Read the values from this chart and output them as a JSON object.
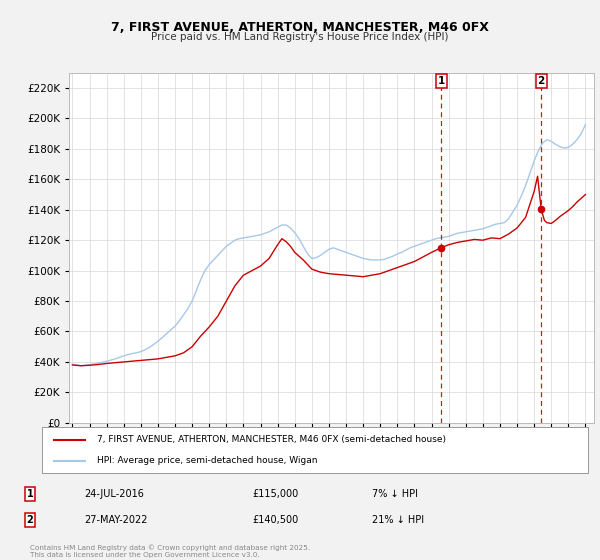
{
  "title_line1": "7, FIRST AVENUE, ATHERTON, MANCHESTER, M46 0FX",
  "title_line2": "Price paid vs. HM Land Registry's House Price Index (HPI)",
  "bg_color": "#f2f2f2",
  "plot_bg_color": "#ffffff",
  "grid_color": "#d8d8d8",
  "hpi_color": "#a8c8e8",
  "price_color": "#cc0000",
  "vline_color": "#cc0000",
  "marker1_x": 2016.56,
  "marker1_y": 115000,
  "marker2_x": 2022.41,
  "marker2_y": 140500,
  "ylim": [
    0,
    230000
  ],
  "xlim": [
    1994.8,
    2025.5
  ],
  "ytick_step": 20000,
  "legend_label_price": "7, FIRST AVENUE, ATHERTON, MANCHESTER, M46 0FX (semi-detached house)",
  "legend_label_hpi": "HPI: Average price, semi-detached house, Wigan",
  "annotation1_label": "1",
  "annotation1_date": "24-JUL-2016",
  "annotation1_price": "£115,000",
  "annotation1_hpi": "7% ↓ HPI",
  "annotation2_label": "2",
  "annotation2_date": "27-MAY-2022",
  "annotation2_price": "£140,500",
  "annotation2_hpi": "21% ↓ HPI",
  "footer": "Contains HM Land Registry data © Crown copyright and database right 2025.\nThis data is licensed under the Open Government Licence v3.0.",
  "hpi_data": [
    [
      1995.0,
      38500
    ],
    [
      1995.25,
      38000
    ],
    [
      1995.5,
      37500
    ],
    [
      1995.75,
      37800
    ],
    [
      1996.0,
      38200
    ],
    [
      1996.25,
      38700
    ],
    [
      1996.5,
      39200
    ],
    [
      1996.75,
      39800
    ],
    [
      1997.0,
      40500
    ],
    [
      1997.25,
      41200
    ],
    [
      1997.5,
      42000
    ],
    [
      1997.75,
      43000
    ],
    [
      1998.0,
      44000
    ],
    [
      1998.25,
      44800
    ],
    [
      1998.5,
      45500
    ],
    [
      1998.75,
      46000
    ],
    [
      1999.0,
      46800
    ],
    [
      1999.25,
      48000
    ],
    [
      1999.5,
      49500
    ],
    [
      1999.75,
      51500
    ],
    [
      2000.0,
      53500
    ],
    [
      2000.25,
      56000
    ],
    [
      2000.5,
      58500
    ],
    [
      2000.75,
      61000
    ],
    [
      2001.0,
      63500
    ],
    [
      2001.25,
      67000
    ],
    [
      2001.5,
      71000
    ],
    [
      2001.75,
      75000
    ],
    [
      2002.0,
      80000
    ],
    [
      2002.25,
      87000
    ],
    [
      2002.5,
      94000
    ],
    [
      2002.75,
      100000
    ],
    [
      2003.0,
      104000
    ],
    [
      2003.25,
      107000
    ],
    [
      2003.5,
      110000
    ],
    [
      2003.75,
      113000
    ],
    [
      2004.0,
      116000
    ],
    [
      2004.25,
      118000
    ],
    [
      2004.5,
      120000
    ],
    [
      2004.75,
      121000
    ],
    [
      2005.0,
      121500
    ],
    [
      2005.25,
      122000
    ],
    [
      2005.5,
      122500
    ],
    [
      2005.75,
      123000
    ],
    [
      2006.0,
      123500
    ],
    [
      2006.25,
      124500
    ],
    [
      2006.5,
      125500
    ],
    [
      2006.75,
      127000
    ],
    [
      2007.0,
      128500
    ],
    [
      2007.25,
      130000
    ],
    [
      2007.5,
      130000
    ],
    [
      2007.75,
      128000
    ],
    [
      2008.0,
      125000
    ],
    [
      2008.25,
      121000
    ],
    [
      2008.5,
      116000
    ],
    [
      2008.75,
      111000
    ],
    [
      2009.0,
      108000
    ],
    [
      2009.25,
      108500
    ],
    [
      2009.5,
      110000
    ],
    [
      2009.75,
      112000
    ],
    [
      2010.0,
      114000
    ],
    [
      2010.25,
      115000
    ],
    [
      2010.5,
      114000
    ],
    [
      2010.75,
      113000
    ],
    [
      2011.0,
      112000
    ],
    [
      2011.25,
      111000
    ],
    [
      2011.5,
      110000
    ],
    [
      2011.75,
      109000
    ],
    [
      2012.0,
      108000
    ],
    [
      2012.25,
      107500
    ],
    [
      2012.5,
      107000
    ],
    [
      2012.75,
      107000
    ],
    [
      2013.0,
      107000
    ],
    [
      2013.25,
      107500
    ],
    [
      2013.5,
      108500
    ],
    [
      2013.75,
      109500
    ],
    [
      2014.0,
      111000
    ],
    [
      2014.25,
      112000
    ],
    [
      2014.5,
      113500
    ],
    [
      2014.75,
      115000
    ],
    [
      2015.0,
      116000
    ],
    [
      2015.25,
      117000
    ],
    [
      2015.5,
      118000
    ],
    [
      2015.75,
      119000
    ],
    [
      2016.0,
      120000
    ],
    [
      2016.25,
      121000
    ],
    [
      2016.5,
      121500
    ],
    [
      2016.75,
      122000
    ],
    [
      2017.0,
      122500
    ],
    [
      2017.25,
      123500
    ],
    [
      2017.5,
      124500
    ],
    [
      2017.75,
      125000
    ],
    [
      2018.0,
      125500
    ],
    [
      2018.25,
      126000
    ],
    [
      2018.5,
      126500
    ],
    [
      2018.75,
      127000
    ],
    [
      2019.0,
      127500
    ],
    [
      2019.25,
      128500
    ],
    [
      2019.5,
      129500
    ],
    [
      2019.75,
      130500
    ],
    [
      2020.0,
      131000
    ],
    [
      2020.25,
      131500
    ],
    [
      2020.5,
      134000
    ],
    [
      2020.75,
      138500
    ],
    [
      2021.0,
      143000
    ],
    [
      2021.25,
      149000
    ],
    [
      2021.5,
      156000
    ],
    [
      2021.75,
      164000
    ],
    [
      2022.0,
      172000
    ],
    [
      2022.25,
      179000
    ],
    [
      2022.5,
      184000
    ],
    [
      2022.75,
      186000
    ],
    [
      2023.0,
      185000
    ],
    [
      2023.25,
      183000
    ],
    [
      2023.5,
      181500
    ],
    [
      2023.75,
      180500
    ],
    [
      2024.0,
      181000
    ],
    [
      2024.25,
      183000
    ],
    [
      2024.5,
      186000
    ],
    [
      2024.75,
      190000
    ],
    [
      2025.0,
      196000
    ]
  ],
  "price_data": [
    [
      1995.0,
      38000
    ],
    [
      1995.5,
      37500
    ],
    [
      1996.0,
      37800
    ],
    [
      1996.5,
      38300
    ],
    [
      1997.0,
      39000
    ],
    [
      1997.5,
      39500
    ],
    [
      1998.0,
      40000
    ],
    [
      1998.5,
      40500
    ],
    [
      1999.0,
      41000
    ],
    [
      1999.5,
      41500
    ],
    [
      2000.0,
      42000
    ],
    [
      2000.5,
      43000
    ],
    [
      2001.0,
      44000
    ],
    [
      2001.5,
      46000
    ],
    [
      2002.0,
      50000
    ],
    [
      2002.5,
      57000
    ],
    [
      2003.0,
      63000
    ],
    [
      2003.5,
      70000
    ],
    [
      2004.0,
      80000
    ],
    [
      2004.5,
      90000
    ],
    [
      2005.0,
      97000
    ],
    [
      2005.5,
      100000
    ],
    [
      2006.0,
      103000
    ],
    [
      2006.5,
      108000
    ],
    [
      2007.0,
      117000
    ],
    [
      2007.25,
      121000
    ],
    [
      2007.5,
      119000
    ],
    [
      2007.75,
      116000
    ],
    [
      2008.0,
      112000
    ],
    [
      2008.5,
      107000
    ],
    [
      2009.0,
      101000
    ],
    [
      2009.5,
      99000
    ],
    [
      2010.0,
      98000
    ],
    [
      2010.5,
      97500
    ],
    [
      2011.0,
      97000
    ],
    [
      2011.5,
      96500
    ],
    [
      2012.0,
      96000
    ],
    [
      2012.5,
      97000
    ],
    [
      2013.0,
      98000
    ],
    [
      2013.5,
      100000
    ],
    [
      2014.0,
      102000
    ],
    [
      2014.5,
      104000
    ],
    [
      2015.0,
      106000
    ],
    [
      2015.5,
      109000
    ],
    [
      2016.0,
      112000
    ],
    [
      2016.56,
      115000
    ],
    [
      2017.0,
      117000
    ],
    [
      2017.5,
      118500
    ],
    [
      2018.0,
      119500
    ],
    [
      2018.5,
      120500
    ],
    [
      2019.0,
      120000
    ],
    [
      2019.5,
      121500
    ],
    [
      2020.0,
      121000
    ],
    [
      2020.5,
      124000
    ],
    [
      2021.0,
      128000
    ],
    [
      2021.5,
      135000
    ],
    [
      2022.0,
      152000
    ],
    [
      2022.2,
      162000
    ],
    [
      2022.41,
      140500
    ],
    [
      2022.6,
      133000
    ],
    [
      2022.75,
      131500
    ],
    [
      2023.0,
      131000
    ],
    [
      2023.25,
      133000
    ],
    [
      2023.5,
      135500
    ],
    [
      2023.75,
      137500
    ],
    [
      2024.0,
      139500
    ],
    [
      2024.25,
      142000
    ],
    [
      2024.5,
      145000
    ],
    [
      2024.75,
      147500
    ],
    [
      2025.0,
      150000
    ]
  ]
}
